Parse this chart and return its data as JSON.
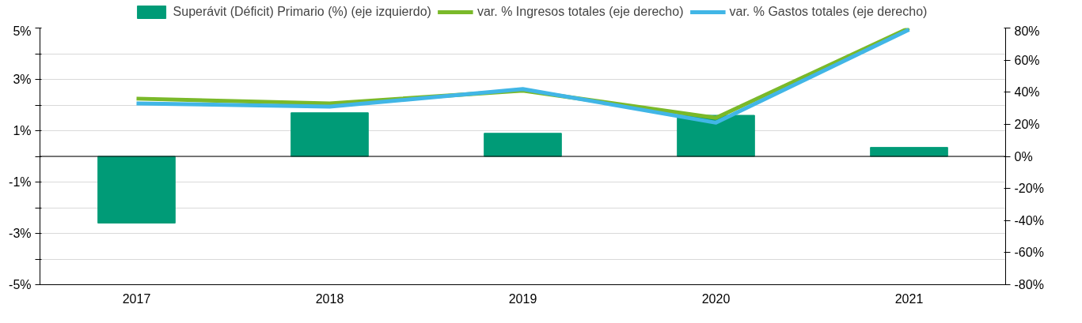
{
  "chart_data": {
    "type": "bar",
    "categories": [
      "2017",
      "2018",
      "2019",
      "2020",
      "2021"
    ],
    "series": [
      {
        "name": "Superávit (Déficit) Primario (%) (eje izquierdo)",
        "color": "#009b77",
        "values": [
          -2.6,
          1.7,
          0.9,
          1.6,
          0.35
        ]
      },
      {
        "name": "var. % Ingresos totales (eje derecho)",
        "type": "line",
        "axis": "y2",
        "color": "#7ab929",
        "values": [
          36,
          33,
          41,
          24,
          80
        ]
      },
      {
        "name": "var. % Gastos totales (eje derecho)",
        "type": "line",
        "axis": "y2",
        "color": "#41b6e6",
        "values": [
          33,
          31,
          42,
          21,
          79
        ]
      }
    ],
    "ylim": [
      -5,
      5
    ],
    "yticks": [
      {
        "value": -5,
        "label": "-5%"
      },
      {
        "value": -4,
        "label": null
      },
      {
        "value": -3,
        "label": "-3%"
      },
      {
        "value": -2,
        "label": null
      },
      {
        "value": -1,
        "label": "-1%"
      },
      {
        "value": 0,
        "label": null
      },
      {
        "value": 1,
        "label": "1%"
      },
      {
        "value": 2,
        "label": null
      },
      {
        "value": 3,
        "label": "3%"
      },
      {
        "value": 4,
        "label": null
      },
      {
        "value": 5,
        "label": "5%"
      }
    ],
    "y2lim": [
      -80,
      80
    ],
    "y2ticks": [
      {
        "value": -80,
        "label": "-80%"
      },
      {
        "value": -60,
        "label": "-60%"
      },
      {
        "value": -40,
        "label": "-40%"
      },
      {
        "value": -20,
        "label": "-20%"
      },
      {
        "value": 0,
        "label": "0%"
      },
      {
        "value": 20,
        "label": "20%"
      },
      {
        "value": 40,
        "label": "40%"
      },
      {
        "value": 60,
        "label": "60%"
      },
      {
        "value": 80,
        "label": "80%"
      }
    ],
    "ref_lines": [
      {
        "axis": "y",
        "value": 0,
        "color": "#000000"
      }
    ],
    "grid": "y",
    "legend": "top"
  }
}
